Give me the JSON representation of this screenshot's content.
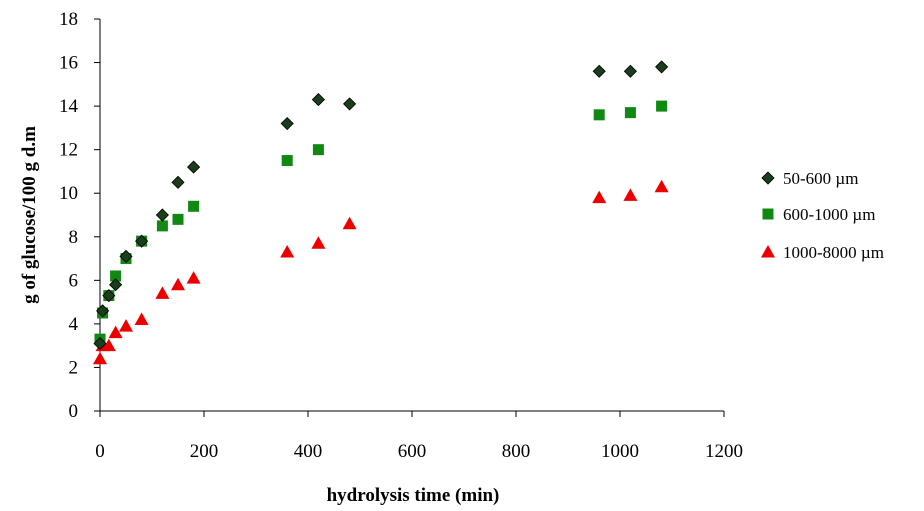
{
  "chart_data": {
    "type": "scatter",
    "title": "",
    "xlabel": "hydrolysis time (min)",
    "ylabel": "g of glucose/100 g d.m",
    "xlim": [
      0,
      1200
    ],
    "ylim": [
      0,
      18
    ],
    "x_ticks": [
      "0",
      "200",
      "400",
      "600",
      "800",
      "1000",
      "1200"
    ],
    "y_ticks": [
      "0",
      "2",
      "4",
      "6",
      "8",
      "10",
      "12",
      "14",
      "16",
      "18"
    ],
    "grid": false,
    "legend_position": "right",
    "series": [
      {
        "name": "50-600 µm",
        "marker": "diamond",
        "color": "#1a3d1a",
        "points": [
          [
            0,
            3.1
          ],
          [
            5,
            4.6
          ],
          [
            17,
            5.3
          ],
          [
            30,
            5.8
          ],
          [
            50,
            7.1
          ],
          [
            80,
            7.8
          ],
          [
            120,
            9.0
          ],
          [
            150,
            10.5
          ],
          [
            180,
            11.2
          ],
          [
            360,
            13.2
          ],
          [
            420,
            14.3
          ],
          [
            480,
            14.1
          ],
          [
            960,
            15.6
          ],
          [
            1020,
            15.6
          ],
          [
            1080,
            15.8
          ]
        ]
      },
      {
        "name": "600-1000 µm",
        "marker": "square",
        "color": "#118811",
        "points": [
          [
            0,
            3.3
          ],
          [
            5,
            4.5
          ],
          [
            17,
            5.3
          ],
          [
            30,
            6.2
          ],
          [
            50,
            7.0
          ],
          [
            80,
            7.8
          ],
          [
            120,
            8.5
          ],
          [
            150,
            8.8
          ],
          [
            180,
            9.4
          ],
          [
            360,
            11.5
          ],
          [
            420,
            12.0
          ],
          [
            960,
            13.6
          ],
          [
            1020,
            13.7
          ],
          [
            1080,
            14.0
          ]
        ]
      },
      {
        "name": "1000-8000 µm",
        "marker": "triangle",
        "color": "#ee0000",
        "points": [
          [
            0,
            2.4
          ],
          [
            5,
            3.0
          ],
          [
            17,
            3.0
          ],
          [
            30,
            3.6
          ],
          [
            50,
            3.9
          ],
          [
            80,
            4.2
          ],
          [
            120,
            5.4
          ],
          [
            150,
            5.8
          ],
          [
            180,
            6.1
          ],
          [
            360,
            7.3
          ],
          [
            420,
            7.7
          ],
          [
            480,
            8.6
          ],
          [
            960,
            9.8
          ],
          [
            1020,
            9.9
          ],
          [
            1080,
            10.3
          ]
        ]
      }
    ]
  }
}
